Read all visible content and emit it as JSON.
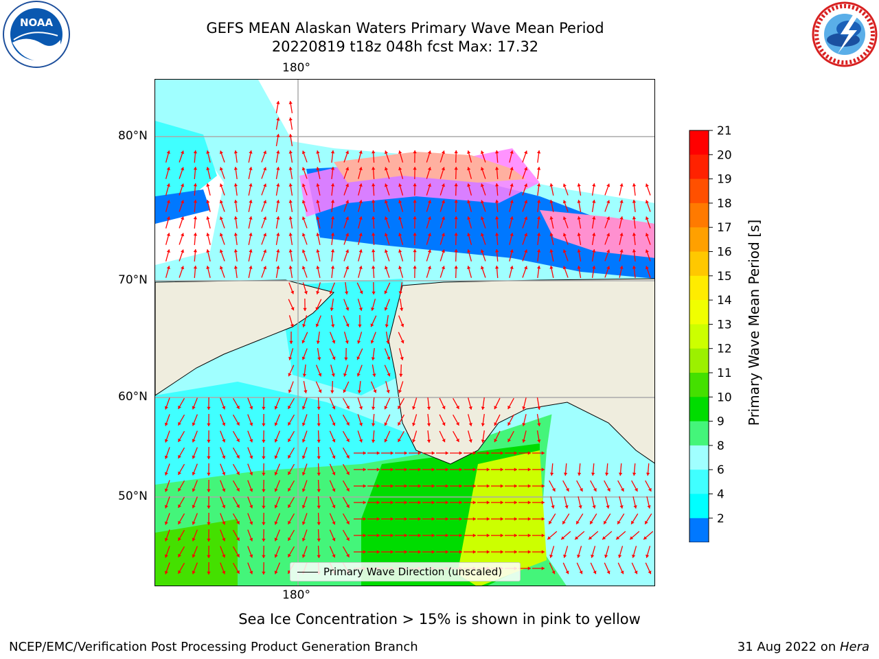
{
  "header": {
    "title_line1": "GEFS MEAN Alaskan Waters Primary Wave Mean Period",
    "title_line2": "20220819 t18z 048h fcst   Max: 17.32"
  },
  "logos": {
    "noaa": {
      "text": "NOAA",
      "ring_text": "NATIONAL OCEANIC AND ATMOSPHERIC ADMINISTRATION · U.S. DEPARTMENT OF COMMERCE"
    },
    "nws": {
      "ring_text": "NATIONAL WEATHER SERVICE"
    }
  },
  "map": {
    "lon_label_top": "180°",
    "lon_label_bottom": "180°",
    "lat_labels": [
      "80°N",
      "70°N",
      "60°N",
      "50°N"
    ],
    "legend_label": "Primary Wave Direction (unscaled)"
  },
  "colorbar": {
    "label": "Primary Wave Mean Period [s]",
    "ticks": [
      "21",
      "20",
      "19",
      "18",
      "17",
      "16",
      "15",
      "14",
      "13",
      "12",
      "11",
      "10",
      "9",
      "8",
      "6",
      "4",
      "2"
    ],
    "colors": [
      "#ff0000",
      "#ff2200",
      "#ff5000",
      "#ff7a00",
      "#ffa000",
      "#ffc800",
      "#ffec00",
      "#f0ff00",
      "#ccff00",
      "#9cf000",
      "#44e000",
      "#00dc00",
      "#44f57a",
      "#a0ffff",
      "#40ffff",
      "#00ffff",
      "#0078ff"
    ],
    "extend_color": "#0000ff"
  },
  "notes": {
    "sea_ice": "Sea Ice Concentration > 15% is shown in pink to yellow"
  },
  "footer": {
    "left": "NCEP/EMC/Verification Post Processing Product Generation Branch",
    "right_prefix": "31 Aug 2022 on ",
    "right_host": "Hera"
  }
}
